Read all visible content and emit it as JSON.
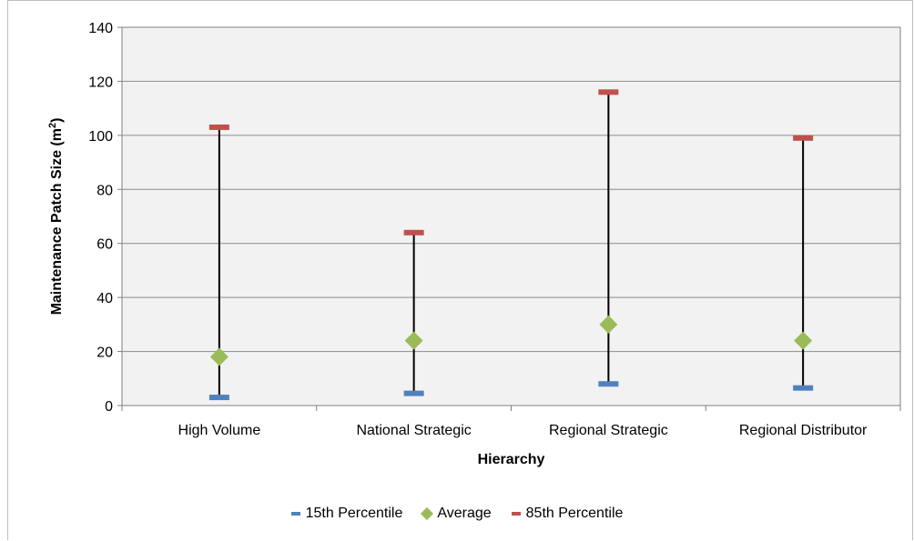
{
  "chart_data": {
    "type": "scatter",
    "xlabel": "Hierarchy",
    "ylabel": "Maintenance Patch Size (m",
    "ylabel_sup": "2",
    "ylabel_end": ")",
    "categories": [
      "High Volume",
      "National Strategic",
      "Regional Strategic",
      "Regional Distributor"
    ],
    "series": [
      {
        "name": "15th Percentile",
        "values": [
          3,
          4.5,
          8,
          6.5
        ],
        "color": "#4f81bd",
        "marker": "dash"
      },
      {
        "name": "Average",
        "values": [
          18,
          24,
          30,
          24
        ],
        "color": "#9bbb59",
        "marker": "diamond"
      },
      {
        "name": "85th Percentile",
        "values": [
          103,
          64,
          116,
          99
        ],
        "color": "#c0504d",
        "marker": "dash"
      }
    ],
    "ylim": [
      0,
      140
    ],
    "yticks": [
      0,
      20,
      40,
      60,
      80,
      100,
      120,
      140
    ],
    "grid": true,
    "legend_position": "bottom",
    "plot_background": "#f2f2f2"
  }
}
